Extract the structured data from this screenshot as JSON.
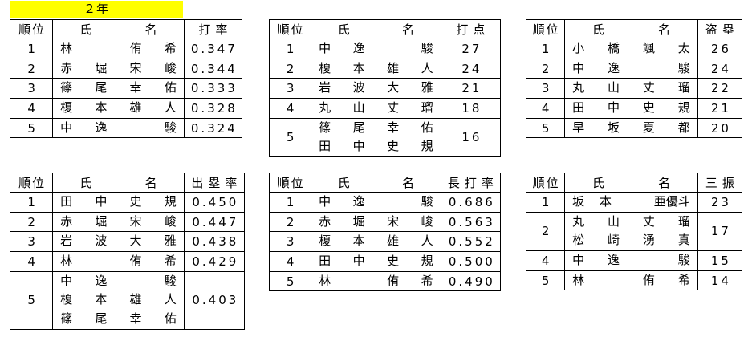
{
  "title": {
    "text": "２年",
    "highlight_color": "#ffff00"
  },
  "columns": {
    "rank": "順位",
    "name_sei": "氏",
    "name_mei": "名"
  },
  "tables": [
    {
      "id": "batting-average",
      "stat_label": "打率",
      "rows": [
        {
          "rank": "1",
          "names": [
            "林　侑希"
          ],
          "value": "0.347"
        },
        {
          "rank": "2",
          "names": [
            "赤堀宋峻"
          ],
          "value": "0.344"
        },
        {
          "rank": "3",
          "names": [
            "篠尾幸佑"
          ],
          "value": "0.333"
        },
        {
          "rank": "4",
          "names": [
            "榎本雄人"
          ],
          "value": "0.328"
        },
        {
          "rank": "5",
          "names": [
            "中逸　駿"
          ],
          "value": "0.324"
        }
      ]
    },
    {
      "id": "rbi",
      "stat_label": "打点",
      "rows": [
        {
          "rank": "1",
          "names": [
            "中逸　駿"
          ],
          "value": "27"
        },
        {
          "rank": "2",
          "names": [
            "榎本雄人"
          ],
          "value": "24"
        },
        {
          "rank": "3",
          "names": [
            "岩波大雅"
          ],
          "value": "21"
        },
        {
          "rank": "4",
          "names": [
            "丸山丈瑠"
          ],
          "value": "18"
        },
        {
          "rank": "5",
          "names": [
            "篠尾幸佑",
            "田中史規"
          ],
          "value": "16"
        }
      ]
    },
    {
      "id": "stolen-bases",
      "stat_label": "盗塁",
      "rows": [
        {
          "rank": "1",
          "names": [
            "小橋颯太"
          ],
          "value": "26"
        },
        {
          "rank": "2",
          "names": [
            "中逸　駿"
          ],
          "value": "24"
        },
        {
          "rank": "3",
          "names": [
            "丸山丈瑠"
          ],
          "value": "22"
        },
        {
          "rank": "4",
          "names": [
            "田中史規"
          ],
          "value": "21"
        },
        {
          "rank": "5",
          "names": [
            "早坂夏都"
          ],
          "value": "20"
        }
      ]
    },
    {
      "id": "on-base-percentage",
      "stat_label": "出塁率",
      "rows": [
        {
          "rank": "1",
          "names": [
            "田中史規"
          ],
          "value": "0.450"
        },
        {
          "rank": "2",
          "names": [
            "赤堀宋峻"
          ],
          "value": "0.447"
        },
        {
          "rank": "3",
          "names": [
            "岩波大雅"
          ],
          "value": "0.438"
        },
        {
          "rank": "4",
          "names": [
            "林　侑希"
          ],
          "value": "0.429"
        },
        {
          "rank": "5",
          "names": [
            "中逸　駿",
            "榎本雄人",
            "篠尾幸佑"
          ],
          "value": "0.403"
        }
      ]
    },
    {
      "id": "slugging-percentage",
      "stat_label": "長打率",
      "rows": [
        {
          "rank": "1",
          "names": [
            "中逸　駿"
          ],
          "value": "0.686"
        },
        {
          "rank": "2",
          "names": [
            "赤堀宋峻"
          ],
          "value": "0.563"
        },
        {
          "rank": "3",
          "names": [
            "榎本雄人"
          ],
          "value": "0.552"
        },
        {
          "rank": "4",
          "names": [
            "田中史規"
          ],
          "value": "0.500"
        },
        {
          "rank": "5",
          "names": [
            "林　侑希"
          ],
          "value": "0.490"
        }
      ]
    },
    {
      "id": "strikeouts",
      "stat_label": "三振",
      "rows": [
        {
          "rank": "1",
          "names": [
            "坂本　亜優斗"
          ],
          "value": "23"
        },
        {
          "rank": "2",
          "names": [
            "丸山丈瑠",
            "松崎湧真"
          ],
          "value": "17"
        },
        {
          "rank": "4",
          "names": [
            "中逸　駿"
          ],
          "value": "15"
        },
        {
          "rank": "5",
          "names": [
            "林　侑希"
          ],
          "value": "14"
        }
      ]
    }
  ]
}
